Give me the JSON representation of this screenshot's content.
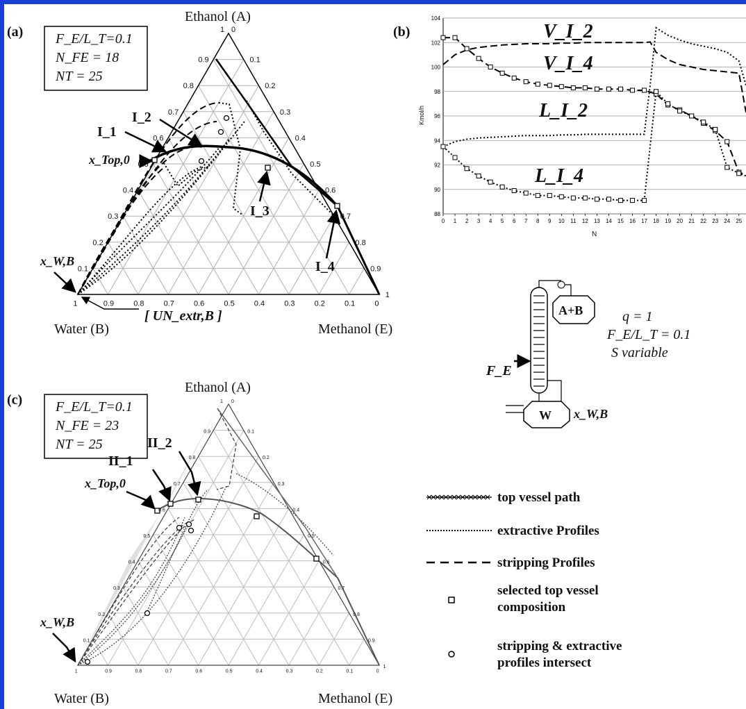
{
  "panels": {
    "a": {
      "letter": "(a)",
      "box": [
        "F_E/L_T=0.1",
        "N_FE = 18",
        "NT = 25"
      ],
      "vertex_top": "Ethanol (A)",
      "vertex_left": "Water (B)",
      "vertex_right": "Methanol (E)",
      "unstable_node": "[ UN_extr,B ]",
      "labels": [
        "I_1",
        "I_2",
        "I_3",
        "I_4"
      ],
      "x_top": "x_Top,0",
      "x_wb": "x_W,B"
    },
    "b": {
      "letter": "(b)",
      "series_labels": [
        "V_I_2",
        "V_I_4",
        "L_I_2",
        "L_I_4"
      ]
    },
    "c": {
      "letter": "(c)",
      "box": [
        "F_E/L_T=0.1",
        "N_FE = 23",
        "NT = 25"
      ],
      "vertex_top": "Ethanol (A)",
      "vertex_left": "Water (B)",
      "vertex_right": "Methanol (E)",
      "labels": [
        "II_1",
        "II_2"
      ],
      "x_top": "x_Top,0",
      "x_wb": "x_W,B"
    }
  },
  "column": {
    "feed": "F_E",
    "top": "A+B",
    "bottom": "W",
    "bottom_product": "x_W,B",
    "q": "q = 1",
    "ratio": "F_E/L_T = 0.1",
    "note": "S variable"
  },
  "legend": [
    {
      "style": "x-line",
      "label": "top vessel path"
    },
    {
      "style": "dotted",
      "label": "extractive Profiles"
    },
    {
      "style": "dashed",
      "label": "stripping Profiles"
    },
    {
      "style": "square",
      "label": "selected top vessel composition"
    },
    {
      "style": "circle",
      "label": "stripping & extractive profiles intersect"
    }
  ],
  "chart_data": [
    {
      "type": "line",
      "panel": "b",
      "xlabel": "N",
      "ylabel": "Kmol/h",
      "ylim": [
        88,
        104
      ],
      "xlim": [
        0,
        25
      ],
      "yticks": [
        88,
        90,
        92,
        94,
        96,
        98,
        100,
        102,
        104
      ],
      "xticks": [
        0,
        1,
        2,
        3,
        4,
        5,
        6,
        7,
        8,
        9,
        10,
        11,
        12,
        13,
        14,
        15,
        16,
        17,
        18,
        19,
        20,
        21,
        22,
        23,
        24,
        25
      ],
      "grid": true,
      "series": [
        {
          "name": "V_I_2",
          "style": "dashed",
          "x": [
            0,
            1,
            2,
            3,
            4,
            5,
            6,
            7,
            8,
            9,
            10,
            11,
            12,
            13,
            14,
            15,
            16,
            17,
            17.5,
            18,
            19,
            20,
            21,
            22,
            23,
            24,
            25,
            25.6
          ],
          "y": [
            100.2,
            101.0,
            101.4,
            101.6,
            101.7,
            101.8,
            101.85,
            101.9,
            101.9,
            101.9,
            101.95,
            101.95,
            102.0,
            102.0,
            102.0,
            102.0,
            102.0,
            102.0,
            102.05,
            101.2,
            100.6,
            100.2,
            100.0,
            99.8,
            99.7,
            99.6,
            99.5,
            96.3
          ]
        },
        {
          "name": "V_I_4",
          "style": "dashed",
          "markers": "square",
          "x": [
            0,
            1,
            2,
            3,
            4,
            5,
            6,
            7,
            8,
            9,
            10,
            11,
            12,
            13,
            14,
            15,
            16,
            17,
            18,
            19,
            20,
            21,
            22,
            23,
            24,
            25,
            25.6
          ],
          "y": [
            102.4,
            102.4,
            101.5,
            100.7,
            100.0,
            99.5,
            99.1,
            98.8,
            98.6,
            98.5,
            98.4,
            98.3,
            98.3,
            98.2,
            98.2,
            98.2,
            98.1,
            98.1,
            97.8,
            96.9,
            96.5,
            96.0,
            95.4,
            94.8,
            93.9,
            91.4,
            91.2
          ]
        },
        {
          "name": "L_I_2",
          "style": "dotted",
          "x": [
            0,
            1,
            2,
            3,
            4,
            5,
            6,
            7,
            8,
            9,
            10,
            11,
            12,
            13,
            14,
            15,
            16,
            17,
            17.5,
            18,
            19,
            20,
            21,
            22,
            23,
            24,
            25,
            25.6
          ],
          "y": [
            93.5,
            93.9,
            94.1,
            94.2,
            94.25,
            94.3,
            94.35,
            94.4,
            94.4,
            94.4,
            94.45,
            94.45,
            94.5,
            94.5,
            94.5,
            94.5,
            94.5,
            94.5,
            98.5,
            103.2,
            102.6,
            102.2,
            101.9,
            101.7,
            101.5,
            101.2,
            100.5,
            98.5
          ]
        },
        {
          "name": "L_I_4",
          "style": "dotted",
          "markers": "square",
          "x": [
            0,
            1,
            2,
            3,
            4,
            5,
            6,
            7,
            8,
            9,
            10,
            11,
            12,
            13,
            14,
            15,
            16,
            17,
            18,
            19,
            20,
            21,
            22,
            23,
            24,
            25,
            25.6
          ],
          "y": [
            93.5,
            92.6,
            91.7,
            91.1,
            90.6,
            90.2,
            89.9,
            89.7,
            89.5,
            89.5,
            89.4,
            89.3,
            89.3,
            89.2,
            89.2,
            89.1,
            89.1,
            89.1,
            98.0,
            97.0,
            96.4,
            96.0,
            95.5,
            94.9,
            91.8,
            91.3,
            91.1
          ]
        }
      ]
    }
  ]
}
